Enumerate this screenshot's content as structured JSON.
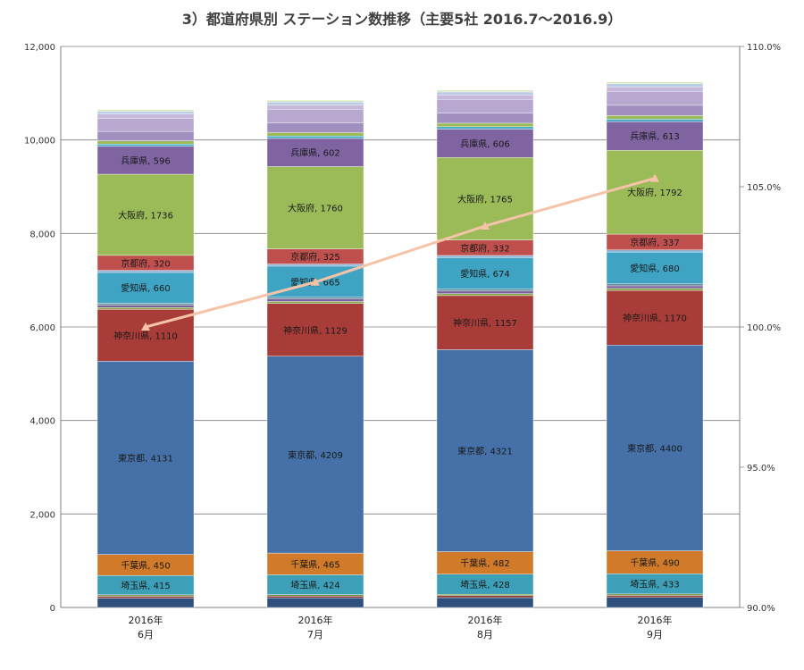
{
  "title": "3）都道府県別 ステーション数推移（主要5社 2016.7〜2016.9）",
  "chart_data": {
    "type": "bar",
    "stacked": true,
    "categories": [
      [
        "2016年",
        "6月"
      ],
      [
        "2016年",
        "7月"
      ],
      [
        "2016年",
        "8月"
      ],
      [
        "2016年",
        "9月"
      ]
    ],
    "ylim": [
      0,
      12000
    ],
    "yticks": [
      "0",
      "2,000",
      "4,000",
      "6,000",
      "8,000",
      "10,000",
      "12,000"
    ],
    "y2lim": [
      90.0,
      110.0
    ],
    "y2ticks": [
      "90.0%",
      "95.0%",
      "100.0%",
      "105.0%",
      "110.0%"
    ],
    "grid": true,
    "series": [
      {
        "values": [
          200,
          205,
          210,
          215
        ],
        "color": "#2f4f7f",
        "label": false
      },
      {
        "values": [
          40,
          40,
          42,
          42
        ],
        "color": "#8b3a3a",
        "label": false
      },
      {
        "values": [
          30,
          30,
          31,
          32
        ],
        "color": "#6f8f3f",
        "label": false
      },
      {
        "name": "埼玉県",
        "values": [
          415,
          424,
          428,
          433
        ],
        "color": "#3ea0b8",
        "label": true
      },
      {
        "name": "千葉県",
        "values": [
          450,
          465,
          482,
          490
        ],
        "color": "#d07a2a",
        "label": true
      },
      {
        "name": "東京都",
        "values": [
          4131,
          4209,
          4321,
          4400
        ],
        "color": "#4571a8",
        "label": true
      },
      {
        "name": "神奈川県",
        "values": [
          1110,
          1129,
          1157,
          1170
        ],
        "color": "#a83c38",
        "label": true
      },
      {
        "values": [
          40,
          42,
          42,
          43
        ],
        "color": "#8aa84a",
        "label": false
      },
      {
        "values": [
          50,
          52,
          54,
          55
        ],
        "color": "#7a5f9a",
        "label": false
      },
      {
        "values": [
          40,
          40,
          42,
          42
        ],
        "color": "#6c8a9a",
        "label": false
      },
      {
        "name": "愛知県",
        "values": [
          660,
          665,
          674,
          680
        ],
        "color": "#3fa4c4",
        "label": true
      },
      {
        "values": [
          45,
          45,
          46,
          47
        ],
        "color": "#8db3d9",
        "label": false
      },
      {
        "name": "京都府",
        "values": [
          320,
          325,
          332,
          337
        ],
        "color": "#c0504d",
        "label": true
      },
      {
        "name": "大阪府",
        "values": [
          1736,
          1760,
          1765,
          1792
        ],
        "color": "#9bbb59",
        "label": true
      },
      {
        "name": "兵庫県",
        "values": [
          596,
          602,
          606,
          613
        ],
        "color": "#8064a2",
        "label": true
      },
      {
        "values": [
          50,
          52,
          52,
          54
        ],
        "color": "#4bacc6",
        "label": false
      },
      {
        "values": [
          70,
          72,
          74,
          76
        ],
        "color": "#9bbb59",
        "label": false
      },
      {
        "values": [
          200,
          210,
          215,
          220
        ],
        "color": "#a08fbf",
        "label": false
      },
      {
        "values": [
          280,
          290,
          295,
          300
        ],
        "color": "#b8a8cf",
        "label": false
      },
      {
        "values": [
          90,
          92,
          95,
          98
        ],
        "color": "#c6b9db",
        "label": false
      },
      {
        "values": [
          60,
          62,
          64,
          66
        ],
        "color": "#b9cde5",
        "label": false
      },
      {
        "values": [
          35,
          36,
          37,
          38
        ],
        "color": "#d7e4bd",
        "label": false
      }
    ],
    "line": {
      "axis": "right",
      "color": "#f5c4a8",
      "values": [
        100.0,
        101.6,
        103.6,
        105.3
      ]
    }
  }
}
